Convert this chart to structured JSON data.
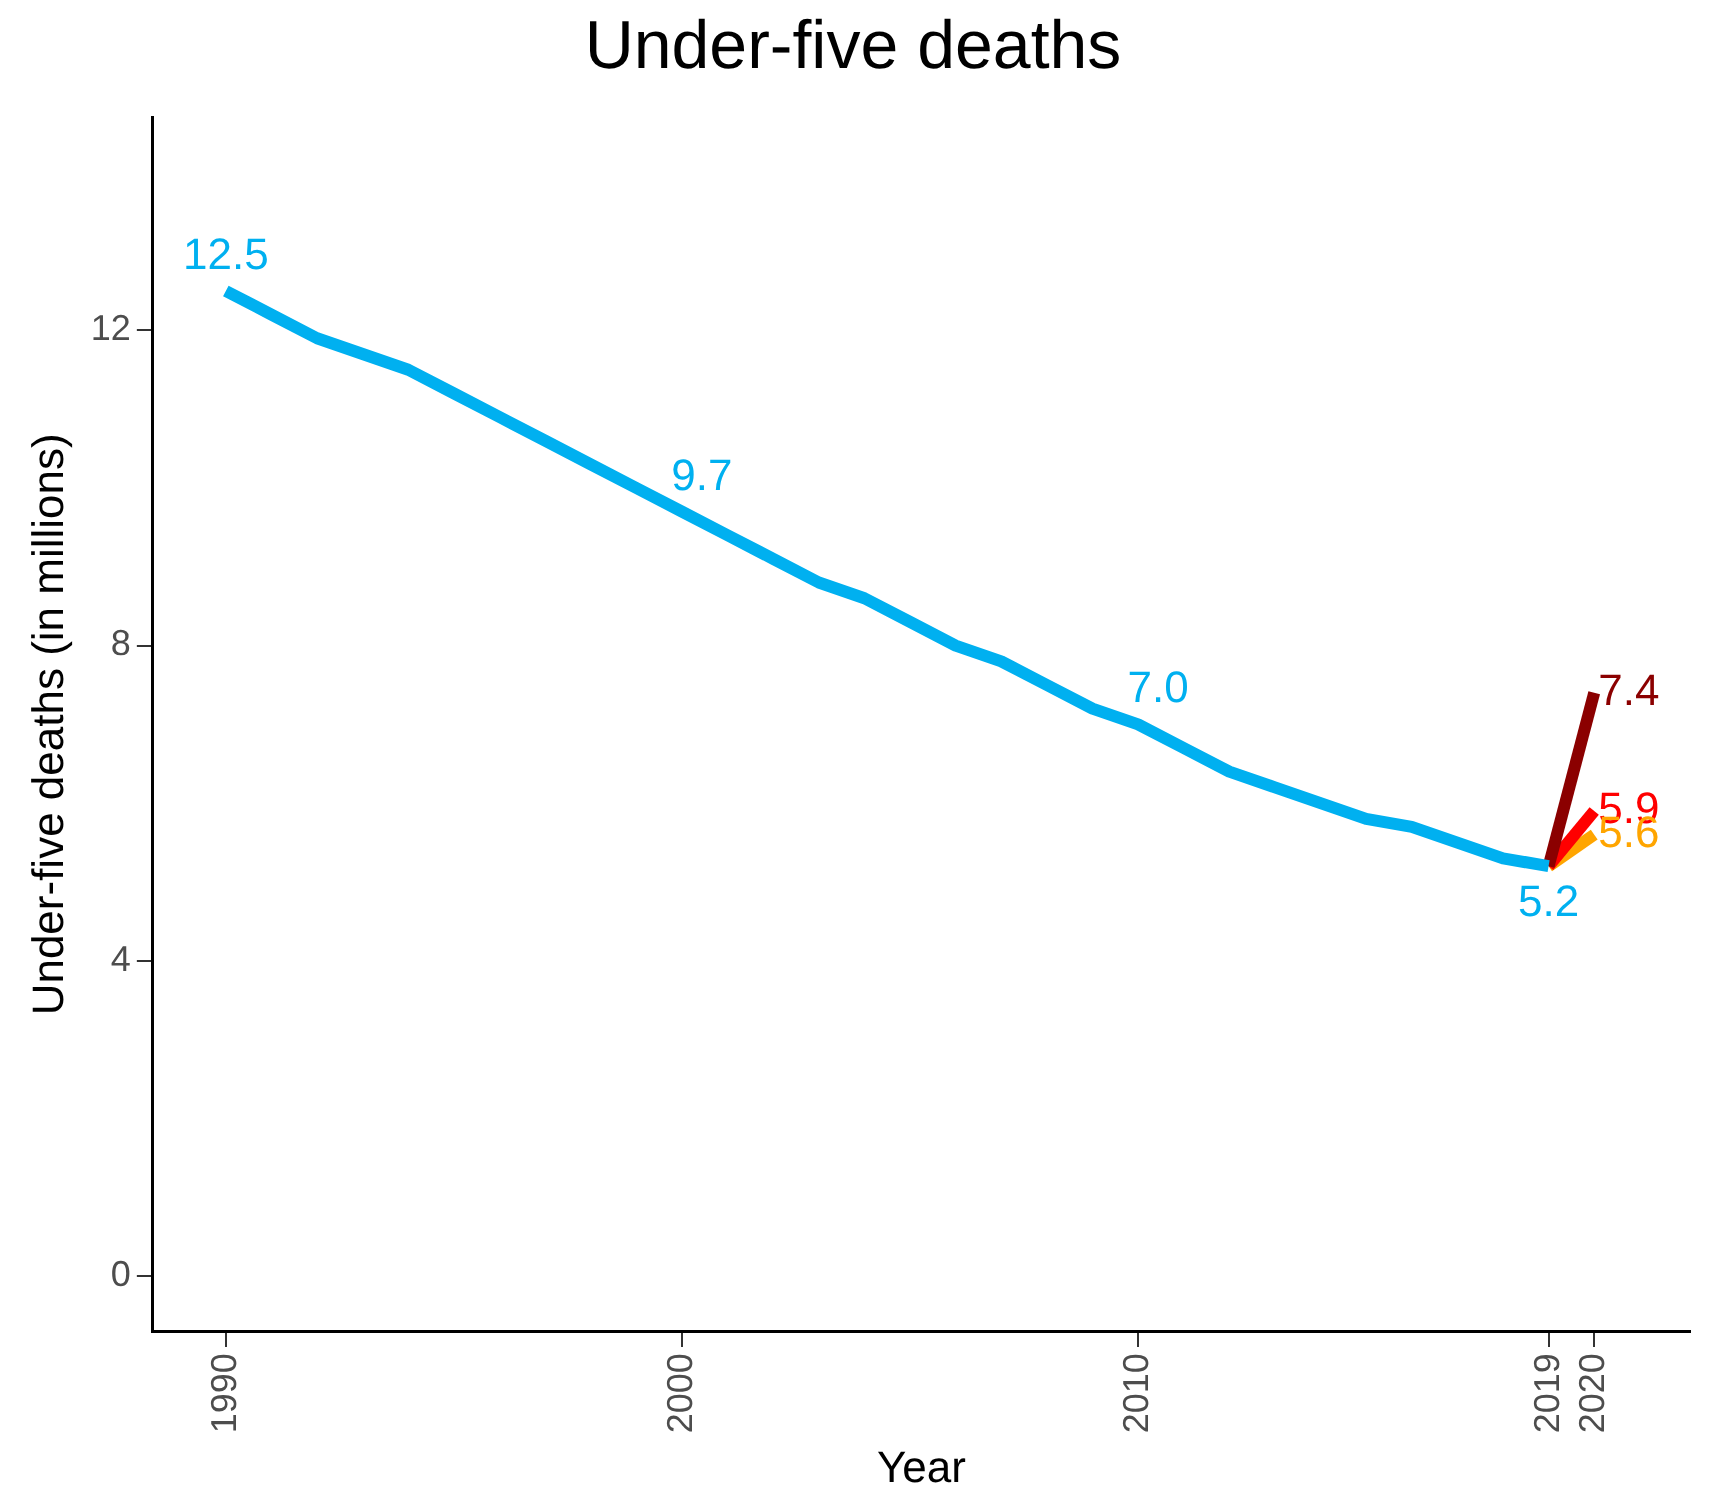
{
  "chart_data": {
    "type": "line",
    "title": "Under-five deaths",
    "xlabel": "Year",
    "ylabel": "Under-five deaths (in millions)",
    "xlim": [
      1988.4,
      2022.1
    ],
    "xticks": [
      1990,
      2000,
      2010,
      2019,
      2020
    ],
    "ylim": [
      -0.7,
      14.7
    ],
    "yticks": [
      0,
      4,
      8,
      12
    ],
    "grid": false,
    "legend": false,
    "marker": "none",
    "line_style": "solid",
    "series": [
      {
        "color": "#00b0f0",
        "x": [
          1990,
          1991,
          1992,
          1993,
          1994,
          1995,
          1996,
          1997,
          1998,
          1999,
          2000,
          2001,
          2002,
          2003,
          2004,
          2005,
          2006,
          2007,
          2008,
          2009,
          2010,
          2011,
          2012,
          2013,
          2014,
          2015,
          2016,
          2017,
          2018,
          2019
        ],
        "values": [
          12.5,
          12.2,
          11.9,
          11.7,
          11.5,
          11.2,
          10.9,
          10.6,
          10.3,
          10.0,
          9.7,
          9.4,
          9.1,
          8.8,
          8.6,
          8.3,
          8.0,
          7.8,
          7.5,
          7.2,
          7.0,
          6.7,
          6.4,
          6.2,
          6.0,
          5.8,
          5.7,
          5.5,
          5.3,
          5.2
        ],
        "value_labels": [
          "12.5",
          null,
          null,
          null,
          null,
          null,
          null,
          null,
          null,
          null,
          "9.7",
          null,
          null,
          null,
          null,
          null,
          null,
          null,
          null,
          null,
          "7.0",
          null,
          null,
          null,
          null,
          null,
          null,
          null,
          null,
          "5.2"
        ]
      },
      {
        "color": "#8b0000",
        "x": [
          2019,
          2020
        ],
        "values": [
          5.2,
          7.4
        ],
        "value_labels": [
          null,
          "7.4"
        ]
      },
      {
        "color": "#ff0000",
        "x": [
          2019,
          2020
        ],
        "values": [
          5.2,
          5.9
        ],
        "value_labels": [
          null,
          "5.9"
        ]
      },
      {
        "color": "#ffa500",
        "x": [
          2019,
          2020
        ],
        "values": [
          5.2,
          5.6
        ],
        "value_labels": [
          null,
          "5.6"
        ]
      }
    ]
  }
}
